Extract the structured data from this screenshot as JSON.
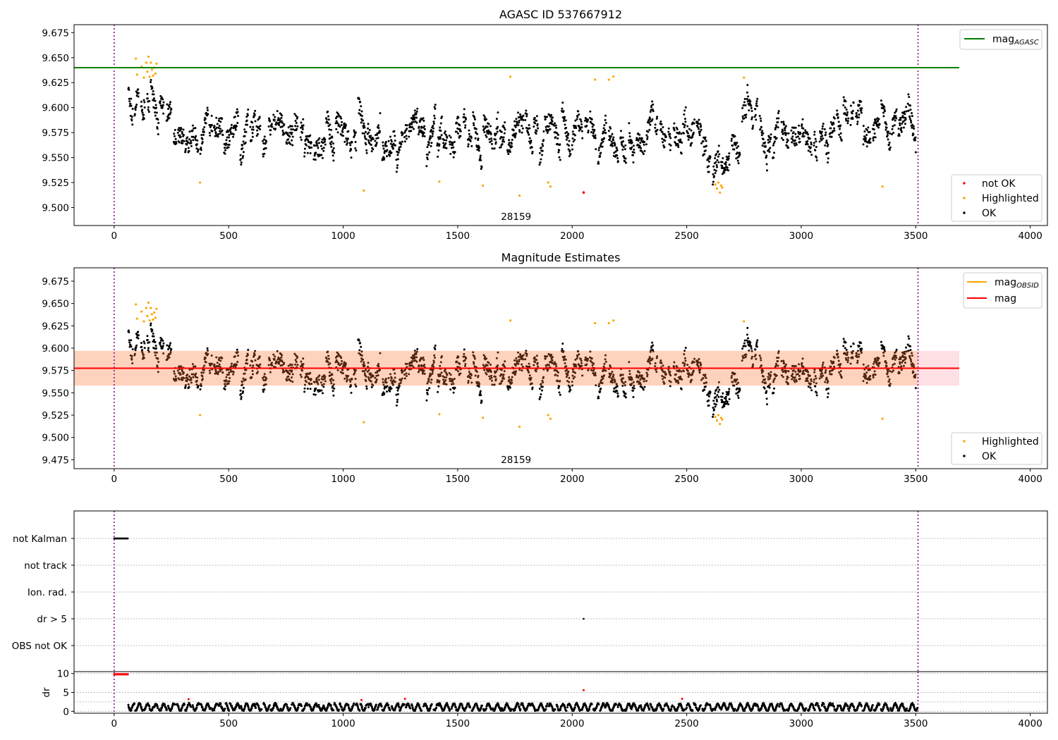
{
  "chart_data": [
    {
      "type": "scatter",
      "title": "AGASC ID 537667912",
      "xlabel": "",
      "ylabel": "",
      "xlim": [
        -175,
        4075
      ],
      "ylim": [
        9.482,
        9.683
      ],
      "xticks": [
        0,
        500,
        1000,
        1500,
        2000,
        2500,
        3000,
        3500,
        4000
      ],
      "xtick_labels": [
        "0",
        "500",
        "1000",
        "1500",
        "2000",
        "2500",
        "3000",
        "3500",
        "4000"
      ],
      "yticks": [
        9.5,
        9.525,
        9.55,
        9.575,
        9.6,
        9.625,
        9.65,
        9.675
      ],
      "ytick_labels": [
        "9.500",
        "9.525",
        "9.550",
        "9.575",
        "9.600",
        "9.625",
        "9.650",
        "9.675"
      ],
      "obsid_boundaries": [
        0,
        3510
      ],
      "obsid_label": "28159",
      "obsid_label_x": 1755,
      "lines": [
        {
          "name": "mag_AGASC",
          "label_main": "mag",
          "label_sub": "AGASC",
          "color": "#008000",
          "y": 9.64,
          "x": [
            -175,
            3690
          ]
        }
      ],
      "legend_lines_position": "upper right",
      "legend_points_position": "lower right",
      "series": [
        {
          "name": "not OK",
          "color": "#ff0000",
          "points": [
            [
              2050,
              9.515
            ]
          ]
        },
        {
          "name": "Highlighted",
          "color": "#ffa500",
          "points": [
            [
              95,
              9.649
            ],
            [
              100,
              9.633
            ],
            [
              120,
              9.641
            ],
            [
              130,
              9.63
            ],
            [
              140,
              9.645
            ],
            [
              145,
              9.636
            ],
            [
              150,
              9.651
            ],
            [
              155,
              9.631
            ],
            [
              160,
              9.645
            ],
            [
              165,
              9.638
            ],
            [
              170,
              9.632
            ],
            [
              175,
              9.64
            ],
            [
              180,
              9.634
            ],
            [
              185,
              9.644
            ],
            [
              375,
              9.525
            ],
            [
              1090,
              9.517
            ],
            [
              1420,
              9.526
            ],
            [
              1610,
              9.522
            ],
            [
              1730,
              9.631
            ],
            [
              1770,
              9.512
            ],
            [
              1895,
              9.525
            ],
            [
              1905,
              9.521
            ],
            [
              2100,
              9.628
            ],
            [
              2160,
              9.628
            ],
            [
              2180,
              9.631
            ],
            [
              2625,
              9.523
            ],
            [
              2632,
              9.519
            ],
            [
              2638,
              9.525
            ],
            [
              2645,
              9.515
            ],
            [
              2650,
              9.522
            ],
            [
              2655,
              9.52
            ],
            [
              2750,
              9.63
            ],
            [
              3355,
              9.521
            ]
          ]
        },
        {
          "name": "OK",
          "color": "#000000",
          "generated": "light_curve"
        }
      ]
    },
    {
      "type": "scatter",
      "title": "Magnitude Estimates",
      "xlabel": "",
      "ylabel": "",
      "xlim": [
        -175,
        4075
      ],
      "ylim": [
        9.465,
        9.69
      ],
      "xticks": [
        0,
        500,
        1000,
        1500,
        2000,
        2500,
        3000,
        3500,
        4000
      ],
      "xtick_labels": [
        "0",
        "500",
        "1000",
        "1500",
        "2000",
        "2500",
        "3000",
        "3500",
        "4000"
      ],
      "yticks": [
        9.475,
        9.5,
        9.525,
        9.55,
        9.575,
        9.6,
        9.625,
        9.65,
        9.675
      ],
      "ytick_labels": [
        "9.475",
        "9.500",
        "9.525",
        "9.550",
        "9.575",
        "9.600",
        "9.625",
        "9.650",
        "9.675"
      ],
      "obsid_boundaries": [
        0,
        3510
      ],
      "obsid_label": "28159",
      "obsid_label_x": 1755,
      "bands": [
        {
          "name": "mag_OBSID band",
          "color": "#ffa500",
          "opacity": 0.18,
          "y0": 9.558,
          "y1": 9.597,
          "x": [
            -175,
            3510
          ]
        },
        {
          "name": "mag band",
          "color": "#ff4060",
          "opacity": 0.16,
          "y0": 9.558,
          "y1": 9.597,
          "x": [
            -175,
            3690
          ]
        }
      ],
      "lines": [
        {
          "name": "mag_OBSID",
          "label_main": "mag",
          "label_sub": "OBSID",
          "color": "#ffa500",
          "y": 9.5775,
          "x": [
            -175,
            3510
          ]
        },
        {
          "name": "mag",
          "label_main": "mag",
          "label_sub": "",
          "color": "#ff0000",
          "y": 9.5775,
          "x": [
            -175,
            3690
          ]
        }
      ],
      "legend_lines_position": "upper right",
      "legend_points_position": "lower right",
      "series": [
        {
          "name": "Highlighted",
          "color": "#ffa500",
          "points": [
            [
              95,
              9.649
            ],
            [
              100,
              9.633
            ],
            [
              120,
              9.641
            ],
            [
              130,
              9.63
            ],
            [
              140,
              9.645
            ],
            [
              145,
              9.636
            ],
            [
              150,
              9.651
            ],
            [
              155,
              9.631
            ],
            [
              160,
              9.645
            ],
            [
              165,
              9.638
            ],
            [
              170,
              9.632
            ],
            [
              175,
              9.64
            ],
            [
              180,
              9.634
            ],
            [
              185,
              9.644
            ],
            [
              375,
              9.525
            ],
            [
              1090,
              9.517
            ],
            [
              1420,
              9.526
            ],
            [
              1610,
              9.522
            ],
            [
              1730,
              9.631
            ],
            [
              1770,
              9.512
            ],
            [
              1895,
              9.525
            ],
            [
              1905,
              9.521
            ],
            [
              2100,
              9.628
            ],
            [
              2160,
              9.628
            ],
            [
              2180,
              9.631
            ],
            [
              2625,
              9.523
            ],
            [
              2632,
              9.519
            ],
            [
              2638,
              9.525
            ],
            [
              2645,
              9.515
            ],
            [
              2650,
              9.522
            ],
            [
              2655,
              9.52
            ],
            [
              2750,
              9.63
            ],
            [
              3355,
              9.521
            ]
          ]
        },
        {
          "name": "OK",
          "color": "#000000",
          "generated": "light_curve"
        }
      ]
    },
    {
      "type": "scatter",
      "title": "",
      "xlabel": "",
      "ylabel": "",
      "xlim": [
        -175,
        4075
      ],
      "categories": [
        "not Kalman",
        "not track",
        "Ion. rad.",
        "dr > 5",
        "OBS not OK"
      ],
      "obsid_boundaries": [
        0,
        3510
      ],
      "series": [
        {
          "name": "not Kalman",
          "color": "#000000",
          "x_range": [
            0,
            60
          ]
        },
        {
          "name": "dr > 5",
          "color": "#000000",
          "points": [
            [
              2050,
              1
            ]
          ]
        }
      ]
    },
    {
      "type": "scatter",
      "title": "",
      "xlabel": "",
      "ylabel": "dr",
      "xlim": [
        -175,
        4075
      ],
      "ylim": [
        -0.5,
        10.5
      ],
      "xticks": [
        0,
        500,
        1000,
        1500,
        2000,
        2500,
        3000,
        3500,
        4000
      ],
      "xtick_labels": [
        "0",
        "500",
        "1000",
        "1500",
        "2000",
        "2500",
        "3000",
        "3500",
        "4000"
      ],
      "yticks": [
        0,
        5,
        10
      ],
      "ytick_labels": [
        "0",
        "5",
        "10"
      ],
      "obsid_boundaries": [
        0,
        3510
      ],
      "series": [
        {
          "name": "dr not OK",
          "color": "#ff0000",
          "x_range": [
            0,
            60
          ],
          "y": 9.8,
          "points": [
            [
              325,
              3.2
            ],
            [
              1080,
              3.0
            ],
            [
              1270,
              3.3
            ],
            [
              2050,
              5.6
            ],
            [
              2480,
              3.3
            ]
          ]
        },
        {
          "name": "dr OK",
          "color": "#000000",
          "generated": "dr_curve",
          "range": [
            0,
            3
          ]
        }
      ]
    }
  ]
}
